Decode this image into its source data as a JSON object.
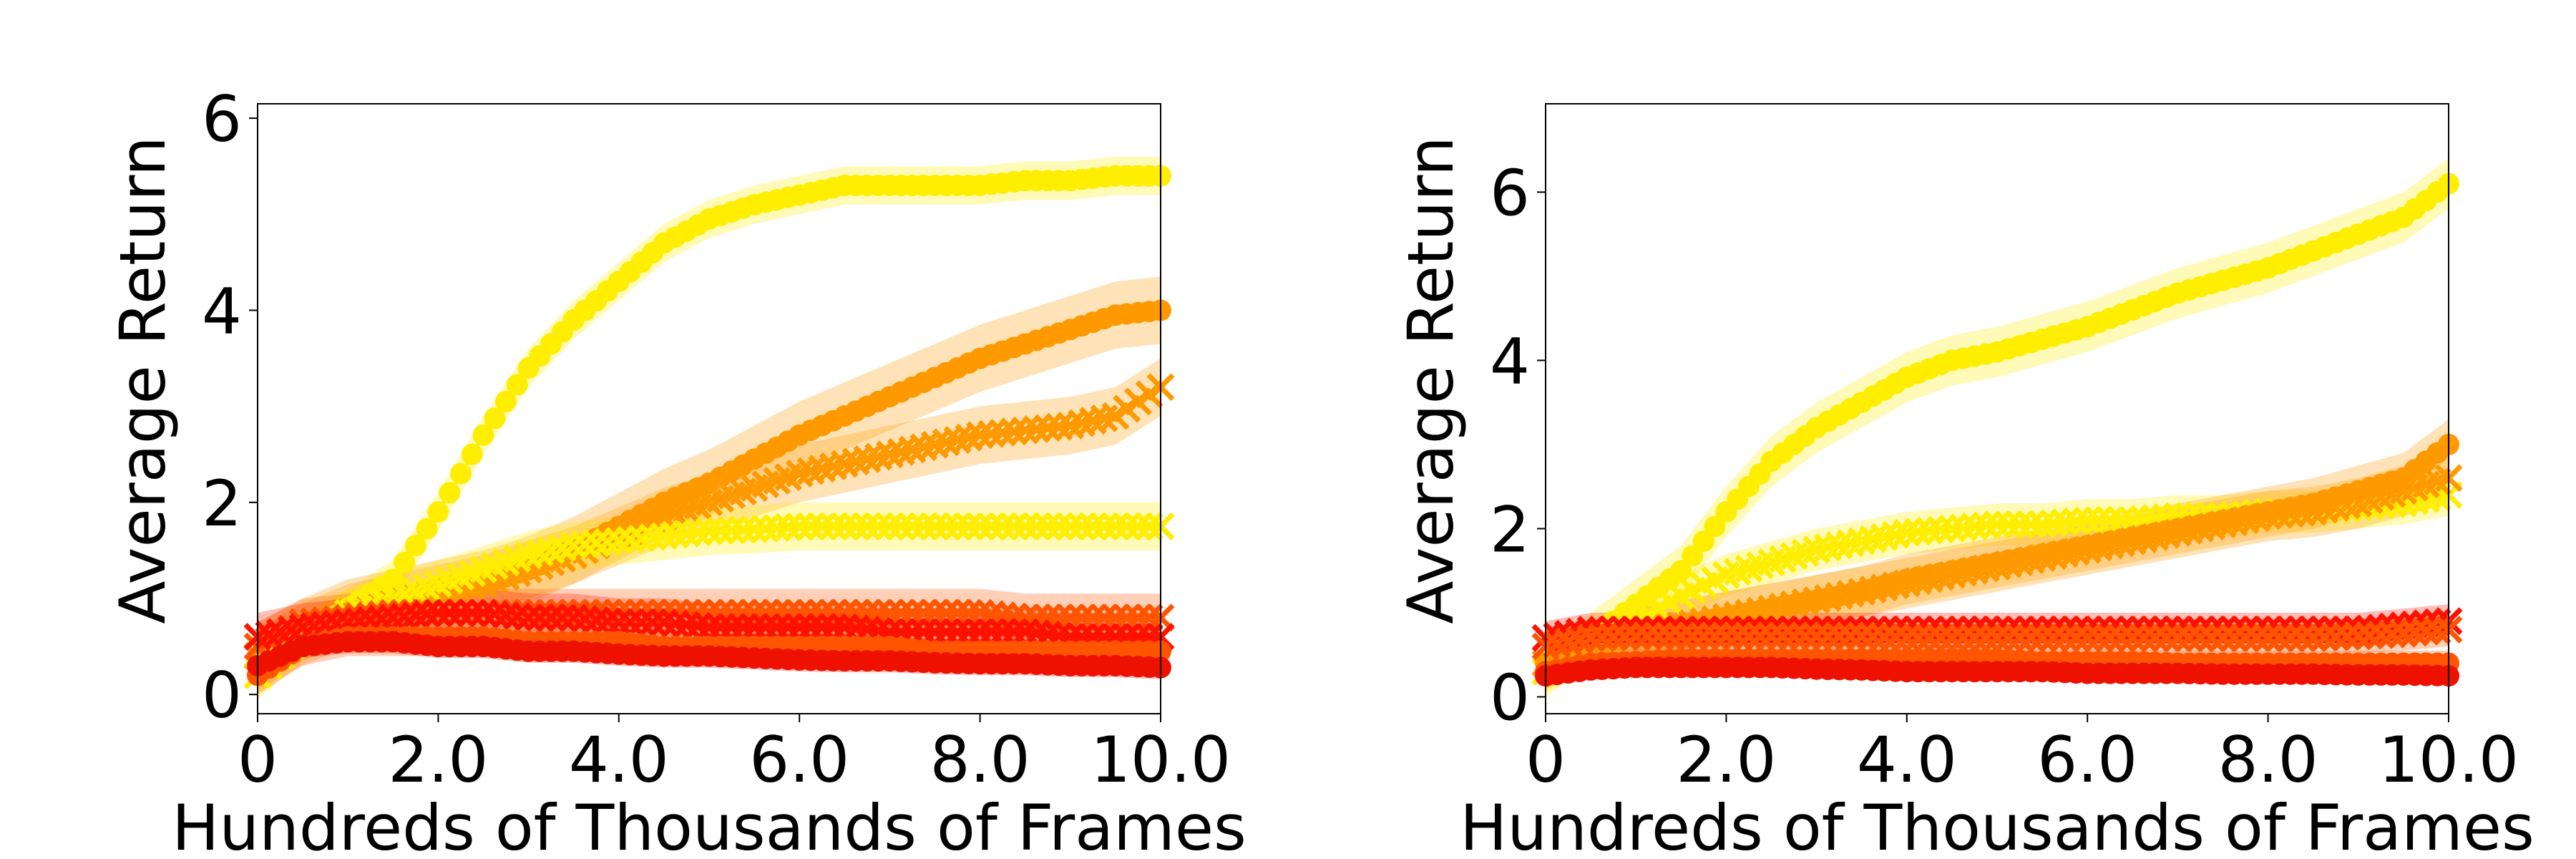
{
  "chart_data": [
    {
      "type": "line",
      "xlabel": "Hundreds of Thousands of Frames",
      "ylabel": "Average Return",
      "xlim": [
        0,
        10
      ],
      "ylim": [
        -0.2,
        6.15
      ],
      "xticks": [
        0,
        2,
        4,
        6,
        8,
        10
      ],
      "xtick_labels": [
        "0",
        "2.0",
        "4.0",
        "6.0",
        "8.0",
        "10.0"
      ],
      "yticks": [
        0,
        2,
        4,
        6
      ],
      "ytick_labels": [
        "0",
        "2",
        "4",
        "6"
      ],
      "grid": false,
      "series": [
        {
          "color": "#ffee00",
          "marker": "circle",
          "band": 0.2,
          "x": [
            0,
            0.5,
            1,
            1.5,
            2,
            2.5,
            3,
            3.5,
            4,
            4.5,
            5,
            5.5,
            6,
            6.5,
            7,
            7.5,
            8,
            8.5,
            9,
            9.5,
            10
          ],
          "y": [
            0.2,
            0.6,
            0.9,
            1.2,
            1.9,
            2.7,
            3.4,
            3.9,
            4.3,
            4.7,
            4.95,
            5.1,
            5.2,
            5.3,
            5.3,
            5.3,
            5.3,
            5.35,
            5.35,
            5.4,
            5.4
          ]
        },
        {
          "color": "#ff9900",
          "marker": "circle",
          "band": 0.35,
          "x": [
            0,
            0.5,
            1,
            1.5,
            2,
            2.5,
            3,
            3.5,
            4,
            4.5,
            5,
            5.5,
            6,
            6.5,
            7,
            7.5,
            8,
            8.5,
            9,
            9.5,
            10
          ],
          "y": [
            0.4,
            0.65,
            0.85,
            0.95,
            1.05,
            1.15,
            1.3,
            1.5,
            1.75,
            2.0,
            2.2,
            2.45,
            2.7,
            2.9,
            3.1,
            3.3,
            3.5,
            3.65,
            3.8,
            3.95,
            4.0
          ]
        },
        {
          "color": "#ff9900",
          "marker": "x",
          "band": 0.3,
          "x": [
            0,
            0.5,
            1,
            1.5,
            2,
            2.5,
            3,
            3.5,
            4,
            4.5,
            5,
            5.5,
            6,
            6.5,
            7,
            7.5,
            8,
            8.5,
            9,
            9.5,
            10
          ],
          "y": [
            0.4,
            0.65,
            0.85,
            0.95,
            1.05,
            1.15,
            1.3,
            1.45,
            1.65,
            1.85,
            2.0,
            2.15,
            2.3,
            2.4,
            2.5,
            2.6,
            2.7,
            2.75,
            2.8,
            2.9,
            3.2
          ]
        },
        {
          "color": "#ffee00",
          "marker": "x",
          "band": 0.25,
          "x": [
            0,
            0.5,
            1,
            1.5,
            2,
            2.5,
            3,
            3.5,
            4,
            4.5,
            5,
            5.5,
            6,
            6.5,
            7,
            7.5,
            8,
            8.5,
            9,
            9.5,
            10
          ],
          "y": [
            0.2,
            0.6,
            0.85,
            1.0,
            1.15,
            1.3,
            1.45,
            1.55,
            1.6,
            1.65,
            1.7,
            1.72,
            1.75,
            1.75,
            1.75,
            1.75,
            1.75,
            1.75,
            1.75,
            1.75,
            1.75
          ]
        },
        {
          "color": "#ff5500",
          "marker": "x",
          "band": 0.25,
          "x": [
            0,
            0.5,
            1,
            1.5,
            2,
            2.5,
            3,
            3.5,
            4,
            4.5,
            5,
            5.5,
            6,
            6.5,
            7,
            7.5,
            8,
            8.5,
            9,
            9.5,
            10
          ],
          "y": [
            0.5,
            0.75,
            0.8,
            0.85,
            0.85,
            0.85,
            0.85,
            0.85,
            0.85,
            0.85,
            0.85,
            0.85,
            0.85,
            0.85,
            0.85,
            0.85,
            0.85,
            0.8,
            0.8,
            0.8,
            0.8
          ]
        },
        {
          "color": "#ff1100",
          "marker": "x",
          "band": 0.25,
          "x": [
            0,
            0.5,
            1,
            1.5,
            2,
            2.5,
            3,
            3.5,
            4,
            4.5,
            5,
            5.5,
            6,
            6.5,
            7,
            7.5,
            8,
            8.5,
            9,
            9.5,
            10
          ],
          "y": [
            0.6,
            0.7,
            0.75,
            0.8,
            0.85,
            0.85,
            0.8,
            0.8,
            0.75,
            0.75,
            0.7,
            0.7,
            0.7,
            0.7,
            0.65,
            0.65,
            0.65,
            0.65,
            0.6,
            0.6,
            0.6
          ]
        },
        {
          "color": "#ff5500",
          "marker": "circle",
          "band": 0.2,
          "x": [
            0,
            0.5,
            1,
            1.5,
            2,
            2.5,
            3,
            3.5,
            4,
            4.5,
            5,
            5.5,
            6,
            6.5,
            7,
            7.5,
            8,
            8.5,
            9,
            9.5,
            10
          ],
          "y": [
            0.2,
            0.5,
            0.6,
            0.6,
            0.6,
            0.6,
            0.55,
            0.55,
            0.55,
            0.5,
            0.5,
            0.5,
            0.5,
            0.5,
            0.5,
            0.45,
            0.45,
            0.45,
            0.45,
            0.45,
            0.45
          ]
        },
        {
          "color": "#ee1100",
          "marker": "circle",
          "band": 0.12,
          "x": [
            0,
            0.5,
            1,
            1.5,
            2,
            2.5,
            3,
            3.5,
            4,
            4.5,
            5,
            5.5,
            6,
            6.5,
            7,
            7.5,
            8,
            8.5,
            9,
            9.5,
            10
          ],
          "y": [
            0.3,
            0.5,
            0.55,
            0.55,
            0.5,
            0.5,
            0.45,
            0.45,
            0.42,
            0.4,
            0.4,
            0.38,
            0.36,
            0.35,
            0.35,
            0.33,
            0.32,
            0.32,
            0.3,
            0.3,
            0.28
          ]
        }
      ]
    },
    {
      "type": "line",
      "xlabel": "Hundreds of Thousands of Frames",
      "ylabel": "Average Return",
      "xlim": [
        0,
        10
      ],
      "ylim": [
        -0.2,
        7.05
      ],
      "xticks": [
        0,
        2,
        4,
        6,
        8,
        10
      ],
      "xtick_labels": [
        "0",
        "2.0",
        "4.0",
        "6.0",
        "8.0",
        "10.0"
      ],
      "yticks": [
        0,
        2,
        4,
        6
      ],
      "ytick_labels": [
        "0",
        "2",
        "4",
        "6"
      ],
      "grid": false,
      "series": [
        {
          "color": "#ffee00",
          "marker": "circle",
          "band": 0.3,
          "x": [
            0,
            0.5,
            1,
            1.5,
            2,
            2.5,
            3,
            3.5,
            4,
            4.5,
            5,
            5.5,
            6,
            6.5,
            7,
            7.5,
            8,
            8.5,
            9,
            9.5,
            10
          ],
          "y": [
            0.3,
            0.7,
            1.1,
            1.5,
            2.2,
            2.8,
            3.2,
            3.5,
            3.8,
            4.0,
            4.1,
            4.25,
            4.4,
            4.6,
            4.8,
            4.95,
            5.1,
            5.3,
            5.5,
            5.7,
            6.1
          ]
        },
        {
          "color": "#ffee00",
          "marker": "x",
          "band": 0.25,
          "x": [
            0,
            0.5,
            1,
            1.5,
            2,
            2.5,
            3,
            3.5,
            4,
            4.5,
            5,
            5.5,
            6,
            6.5,
            7,
            7.5,
            8,
            8.5,
            9,
            9.5,
            10
          ],
          "y": [
            0.3,
            0.6,
            0.9,
            1.2,
            1.45,
            1.6,
            1.75,
            1.85,
            1.95,
            2.0,
            2.05,
            2.05,
            2.1,
            2.1,
            2.15,
            2.15,
            2.2,
            2.2,
            2.25,
            2.3,
            2.4
          ]
        },
        {
          "color": "#ff9900",
          "marker": "circle",
          "band": 0.3,
          "x": [
            0,
            0.5,
            1,
            1.5,
            2,
            2.5,
            3,
            3.5,
            4,
            4.5,
            5,
            5.5,
            6,
            6.5,
            7,
            7.5,
            8,
            8.5,
            9,
            9.5,
            10
          ],
          "y": [
            0.4,
            0.6,
            0.75,
            0.85,
            0.95,
            1.05,
            1.15,
            1.25,
            1.4,
            1.5,
            1.6,
            1.7,
            1.8,
            1.9,
            2.0,
            2.1,
            2.2,
            2.3,
            2.45,
            2.6,
            3.0
          ]
        },
        {
          "color": "#ff9900",
          "marker": "x",
          "band": 0.3,
          "x": [
            0,
            0.5,
            1,
            1.5,
            2,
            2.5,
            3,
            3.5,
            4,
            4.5,
            5,
            5.5,
            6,
            6.5,
            7,
            7.5,
            8,
            8.5,
            9,
            9.5,
            10
          ],
          "y": [
            0.4,
            0.6,
            0.75,
            0.85,
            0.95,
            1.05,
            1.15,
            1.25,
            1.35,
            1.45,
            1.55,
            1.65,
            1.75,
            1.85,
            1.95,
            2.05,
            2.15,
            2.2,
            2.3,
            2.45,
            2.6
          ]
        },
        {
          "color": "#ff1100",
          "marker": "x",
          "band": 0.2,
          "x": [
            0,
            0.5,
            1,
            1.5,
            2,
            2.5,
            3,
            3.5,
            4,
            4.5,
            5,
            5.5,
            6,
            6.5,
            7,
            7.5,
            8,
            8.5,
            9,
            9.5,
            10
          ],
          "y": [
            0.7,
            0.8,
            0.8,
            0.8,
            0.8,
            0.8,
            0.8,
            0.8,
            0.8,
            0.8,
            0.8,
            0.8,
            0.8,
            0.8,
            0.8,
            0.8,
            0.8,
            0.8,
            0.8,
            0.85,
            0.9
          ]
        },
        {
          "color": "#ff5500",
          "marker": "x",
          "band": 0.2,
          "x": [
            0,
            0.5,
            1,
            1.5,
            2,
            2.5,
            3,
            3.5,
            4,
            4.5,
            5,
            5.5,
            6,
            6.5,
            7,
            7.5,
            8,
            8.5,
            9,
            9.5,
            10
          ],
          "y": [
            0.6,
            0.7,
            0.72,
            0.72,
            0.72,
            0.72,
            0.72,
            0.72,
            0.7,
            0.7,
            0.7,
            0.7,
            0.7,
            0.7,
            0.7,
            0.7,
            0.7,
            0.7,
            0.72,
            0.75,
            0.8
          ]
        },
        {
          "color": "#ff5500",
          "marker": "circle",
          "band": 0.15,
          "x": [
            0,
            0.5,
            1,
            1.5,
            2,
            2.5,
            3,
            3.5,
            4,
            4.5,
            5,
            5.5,
            6,
            6.5,
            7,
            7.5,
            8,
            8.5,
            9,
            9.5,
            10
          ],
          "y": [
            0.3,
            0.4,
            0.42,
            0.45,
            0.45,
            0.45,
            0.45,
            0.45,
            0.45,
            0.45,
            0.45,
            0.42,
            0.42,
            0.42,
            0.4,
            0.4,
            0.4,
            0.4,
            0.4,
            0.4,
            0.4
          ]
        },
        {
          "color": "#ee1100",
          "marker": "circle",
          "band": 0.1,
          "x": [
            0,
            0.5,
            1,
            1.5,
            2,
            2.5,
            3,
            3.5,
            4,
            4.5,
            5,
            5.5,
            6,
            6.5,
            7,
            7.5,
            8,
            8.5,
            9,
            9.5,
            10
          ],
          "y": [
            0.25,
            0.32,
            0.35,
            0.35,
            0.35,
            0.35,
            0.33,
            0.32,
            0.3,
            0.3,
            0.3,
            0.3,
            0.28,
            0.28,
            0.28,
            0.27,
            0.27,
            0.27,
            0.26,
            0.26,
            0.25
          ]
        }
      ]
    }
  ]
}
